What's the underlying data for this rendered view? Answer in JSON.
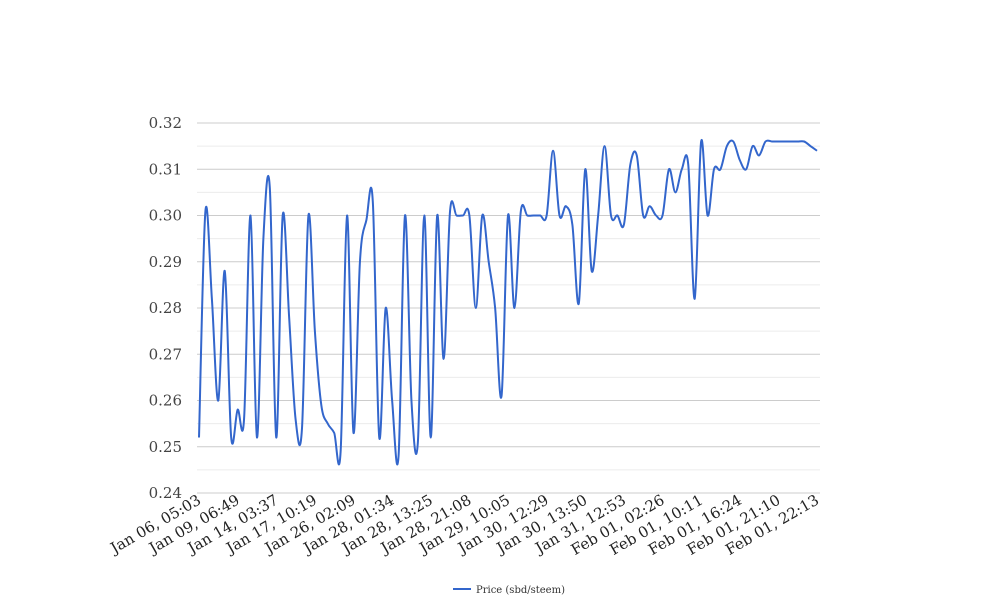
{
  "chart_data": {
    "type": "line",
    "title": "",
    "xlabel": "",
    "ylabel": "",
    "ylim": [
      0.24,
      0.32
    ],
    "y_ticks": [
      0.24,
      0.25,
      0.26,
      0.27,
      0.28,
      0.29,
      0.3,
      0.31,
      0.32
    ],
    "y_tick_labels": [
      "0.24",
      "0.25",
      "0.26",
      "0.27",
      "0.28",
      "0.29",
      "0.30",
      "0.31",
      "0.32"
    ],
    "grid": true,
    "minor_grid": true,
    "legend_position": "bottom-center",
    "line_color": "#3366cc",
    "x_tick_labels": [
      "Jan 06, 05:03",
      "Jan 09, 06:49",
      "Jan 14, 03:37",
      "Jan 17, 10:19",
      "Jan 26, 02:09",
      "Jan 28, 01:34",
      "Jan 28, 13:25",
      "Jan 28, 21:08",
      "Jan 29, 10:05",
      "Jan 30, 12:29",
      "Jan 30, 13:50",
      "Jan 31, 12:53",
      "Feb 01, 02:26",
      "Feb 01, 10:11",
      "Feb 01, 16:24",
      "Feb 01, 21:10",
      "Feb 01, 22:13"
    ],
    "x_tick_positions": [
      0,
      6,
      12,
      18,
      24,
      30,
      36,
      42,
      48,
      54,
      60,
      66,
      72,
      78,
      84,
      90,
      96
    ],
    "series": [
      {
        "name": "Price (sbd/steem)",
        "values": [
          0.252,
          0.301,
          0.282,
          0.26,
          0.288,
          0.252,
          0.258,
          0.256,
          0.3,
          0.252,
          0.295,
          0.306,
          0.252,
          0.3,
          0.278,
          0.256,
          0.254,
          0.3,
          0.275,
          0.259,
          0.255,
          0.253,
          0.249,
          0.3,
          0.253,
          0.29,
          0.299,
          0.303,
          0.252,
          0.28,
          0.26,
          0.248,
          0.3,
          0.26,
          0.251,
          0.3,
          0.252,
          0.3,
          0.269,
          0.301,
          0.3,
          0.3,
          0.3,
          0.28,
          0.3,
          0.29,
          0.28,
          0.261,
          0.3,
          0.28,
          0.301,
          0.3,
          0.3,
          0.3,
          0.3,
          0.314,
          0.3,
          0.302,
          0.298,
          0.281,
          0.31,
          0.288,
          0.3,
          0.315,
          0.3,
          0.3,
          0.298,
          0.311,
          0.313,
          0.3,
          0.302,
          0.3,
          0.3,
          0.31,
          0.305,
          0.31,
          0.311,
          0.282,
          0.316,
          0.3,
          0.31,
          0.31,
          0.315,
          0.316,
          0.312,
          0.31,
          0.315,
          0.313,
          0.316,
          0.316,
          0.316,
          0.316,
          0.316,
          0.316,
          0.316,
          0.315,
          0.314
        ]
      }
    ]
  }
}
